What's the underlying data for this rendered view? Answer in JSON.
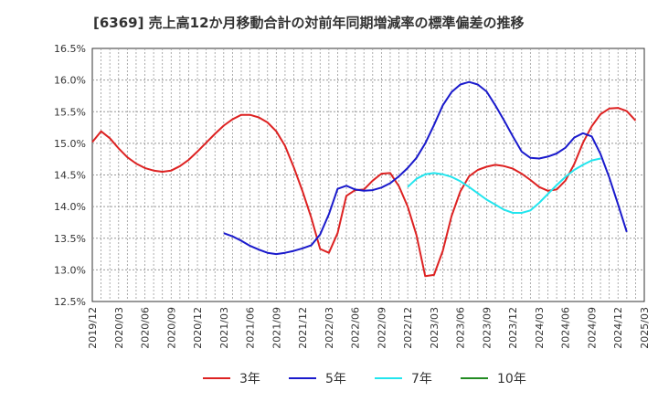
{
  "chart_data": {
    "type": "line",
    "title": "[6369]  売上高12か月移動合計の対前年同期増減率の標準偏差の推移",
    "y_ticks": [
      "16.5%",
      "16.0%",
      "15.5%",
      "15.0%",
      "14.5%",
      "14.0%",
      "13.5%",
      "13.0%",
      "12.5%"
    ],
    "ylim": [
      12.5,
      16.5
    ],
    "x_ticks": [
      "2019/12",
      "2020/03",
      "2020/06",
      "2020/09",
      "2020/12",
      "2021/03",
      "2021/06",
      "2021/09",
      "2021/12",
      "2022/03",
      "2022/06",
      "2022/09",
      "2022/12",
      "2023/03",
      "2023/06",
      "2023/09",
      "2023/12",
      "2024/03",
      "2024/06",
      "2024/09",
      "2024/12",
      "2025/03"
    ],
    "grid": true,
    "legend_position": "bottom",
    "colors": {
      "3y": "#dd2222",
      "5y": "#1a1acc",
      "7y": "#22e5ee",
      "10y": "#228b22"
    },
    "series": [
      {
        "name": "3年",
        "key": "3y",
        "start": "2019/12",
        "values": [
          15.02,
          15.19,
          15.08,
          14.92,
          14.78,
          14.68,
          14.61,
          14.57,
          14.55,
          14.57,
          14.64,
          14.74,
          14.87,
          15.01,
          15.15,
          15.28,
          15.38,
          15.45,
          15.45,
          15.41,
          15.33,
          15.19,
          14.96,
          14.62,
          14.24,
          13.82,
          13.33,
          13.27,
          13.58,
          14.17,
          14.26,
          14.27,
          14.41,
          14.52,
          14.53,
          14.32,
          14.0,
          13.55,
          12.9,
          12.92,
          13.3,
          13.85,
          14.24,
          14.48,
          14.58,
          14.63,
          14.66,
          14.64,
          14.6,
          14.52,
          14.42,
          14.31,
          14.25,
          14.27,
          14.41,
          14.67,
          15.01,
          15.27,
          15.46,
          15.55,
          15.56,
          15.51,
          15.36
        ]
      },
      {
        "name": "5年",
        "key": "5y",
        "start": "2021/03",
        "values": [
          13.58,
          13.53,
          13.46,
          13.38,
          13.32,
          13.27,
          13.25,
          13.27,
          13.3,
          13.34,
          13.39,
          13.56,
          13.88,
          14.28,
          14.33,
          14.27,
          14.25,
          14.26,
          14.3,
          14.37,
          14.48,
          14.61,
          14.77,
          15.0,
          15.29,
          15.6,
          15.81,
          15.93,
          15.97,
          15.93,
          15.82,
          15.6,
          15.36,
          15.11,
          14.87,
          14.77,
          14.76,
          14.79,
          14.84,
          14.93,
          15.09,
          15.16,
          15.11,
          14.83,
          14.46,
          14.04,
          13.6
        ]
      },
      {
        "name": "7年",
        "key": "7y",
        "start": "2022/12",
        "values": [
          14.31,
          14.44,
          14.51,
          14.53,
          14.51,
          14.47,
          14.4,
          14.31,
          14.21,
          14.11,
          14.03,
          13.95,
          13.9,
          13.9,
          13.94,
          14.06,
          14.2,
          14.34,
          14.47,
          14.58,
          14.66,
          14.73,
          14.76
        ]
      },
      {
        "name": "10年",
        "key": "10y",
        "start": "2024/12",
        "values": []
      }
    ]
  }
}
